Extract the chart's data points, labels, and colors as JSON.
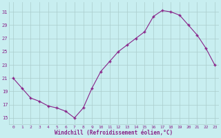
{
  "x": [
    0,
    1,
    2,
    3,
    4,
    5,
    6,
    7,
    8,
    9,
    10,
    11,
    12,
    13,
    14,
    15,
    16,
    17,
    18,
    19,
    20,
    21,
    22,
    23
  ],
  "y": [
    21,
    19.5,
    18,
    17.5,
    16.8,
    16.5,
    16,
    15,
    16.5,
    19.5,
    22,
    23.5,
    25,
    26,
    27,
    28,
    30.3,
    31.2,
    31.0,
    30.5,
    29,
    27.5,
    25.5,
    23
  ],
  "line_color": "#882288",
  "marker": "+",
  "marker_size": 3,
  "background_color": "#c8eef0",
  "grid_color": "#aacccc",
  "xlabel": "Windchill (Refroidissement éolien,°C)",
  "xlabel_color": "#882288",
  "tick_color": "#882288",
  "ytick_labels": [
    "15",
    "17",
    "19",
    "21",
    "23",
    "25",
    "27",
    "29",
    "31"
  ],
  "yticks": [
    15,
    17,
    19,
    21,
    23,
    25,
    27,
    29,
    31
  ],
  "xticks": [
    0,
    1,
    2,
    3,
    4,
    5,
    6,
    7,
    8,
    9,
    10,
    11,
    12,
    13,
    14,
    15,
    16,
    17,
    18,
    19,
    20,
    21,
    22,
    23
  ],
  "ylim": [
    14.0,
    32.5
  ],
  "xlim": [
    -0.5,
    23.5
  ],
  "figsize": [
    3.2,
    2.0
  ],
  "dpi": 100
}
